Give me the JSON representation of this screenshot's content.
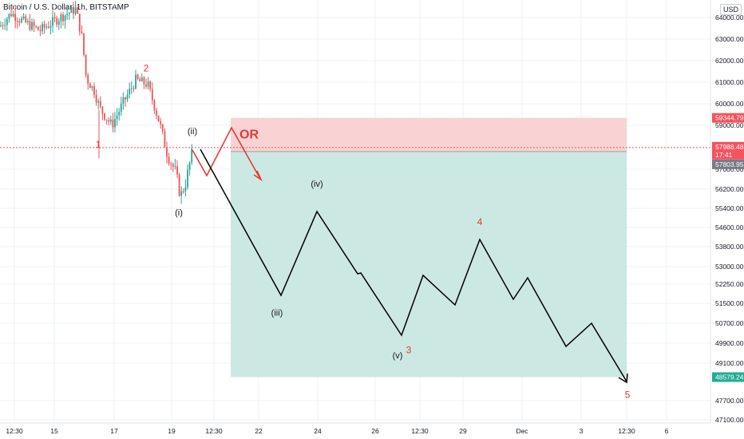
{
  "header": {
    "title": "Bitcoin / U.S. Dollar, 1h, BITSTAMP",
    "currency": "USD"
  },
  "chart_data": {
    "type": "candlestick",
    "y_ticks": [
      "64000.00",
      "63000.00",
      "62000.00",
      "61000.00",
      "60000.00",
      "59000.00",
      "57000.00",
      "56200.00",
      "55400.00",
      "54600.00",
      "53800.00",
      "53000.00",
      "52250.00",
      "51500.00",
      "50700.00",
      "49900.00",
      "49100.00",
      "47700.00",
      "47100.00"
    ],
    "x_ticks": [
      "12:30",
      "15",
      "17",
      "19",
      "12:30",
      "22",
      "24",
      "26",
      "12:30",
      "29",
      "Dec",
      "3",
      "12:30",
      "6"
    ],
    "price_badges": [
      {
        "value": "59344.79",
        "role": "stop"
      },
      {
        "value": "57988.48",
        "role": "current"
      },
      {
        "value": "17:41",
        "role": "countdown"
      },
      {
        "value": "57803.95",
        "role": "entry"
      },
      {
        "value": "48579.24",
        "role": "target"
      }
    ],
    "current_price": 57988.48,
    "position": {
      "entry": 57803.95,
      "stop": 59344.79,
      "target": 48579.24
    },
    "wave_labels": [
      {
        "text": "1",
        "color": "#e53935",
        "price": 57988
      },
      {
        "text": "2",
        "color": "#e53935",
        "price": 61500
      },
      {
        "text": "(i)",
        "color": "#131722",
        "price": 55100
      },
      {
        "text": "(ii)",
        "color": "#131722",
        "price": 58600
      },
      {
        "text": "OR",
        "color": "#e53935",
        "price": 58400
      },
      {
        "text": "(iv)",
        "color": "#131722",
        "price": 56300
      },
      {
        "text": "(iii)",
        "color": "#131722",
        "price": 51000
      },
      {
        "text": "(v)",
        "color": "#131722",
        "price": 49300
      },
      {
        "text": "3",
        "color": "#e53935",
        "price": 49500
      },
      {
        "text": "4",
        "color": "#e53935",
        "price": 54700
      },
      {
        "text": "5",
        "color": "#e53935",
        "price": 47800
      }
    ]
  }
}
